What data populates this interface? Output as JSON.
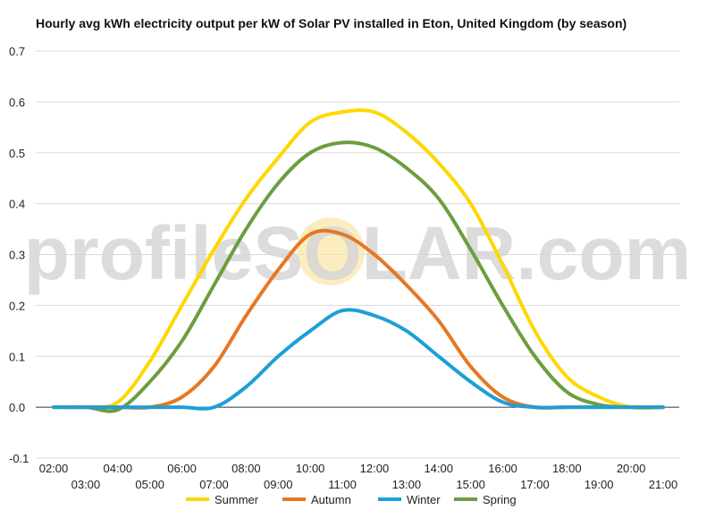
{
  "chart_data": {
    "type": "line",
    "title": "Hourly avg kWh electricity output per kW of Solar PV installed in Eton, United Kingdom (by season)",
    "xlabel": "",
    "ylabel": "",
    "ylim": [
      -0.1,
      0.7
    ],
    "yticks": [
      -0.1,
      0.0,
      0.1,
      0.2,
      0.3,
      0.4,
      0.5,
      0.6,
      0.7
    ],
    "ytick_labels": [
      "-0.1",
      "0.0",
      "0.1",
      "0.2",
      "0.3",
      "0.4",
      "0.5",
      "0.6",
      "0.7"
    ],
    "x": [
      2,
      3,
      4,
      5,
      6,
      7,
      8,
      9,
      10,
      11,
      12,
      13,
      14,
      15,
      16,
      17,
      18,
      19,
      20,
      21
    ],
    "x_tick_labels_upper": [
      "02:00",
      "04:00",
      "06:00",
      "08:00",
      "10:00",
      "12:00",
      "14:00",
      "16:00",
      "18:00",
      "20:00"
    ],
    "x_tick_labels_lower": [
      "03:00",
      "05:00",
      "07:00",
      "09:00",
      "11:00",
      "13:00",
      "15:00",
      "17:00",
      "19:00",
      "21:00"
    ],
    "grid": true,
    "legend_position": "bottom",
    "watermark": "profileSOLAR.com",
    "series": [
      {
        "name": "Summer",
        "color": "#FFD700",
        "values": [
          0,
          0,
          0.01,
          0.09,
          0.2,
          0.31,
          0.41,
          0.49,
          0.56,
          0.58,
          0.58,
          0.54,
          0.48,
          0.4,
          0.28,
          0.15,
          0.06,
          0.02,
          0.0,
          0.0
        ]
      },
      {
        "name": "Autumn",
        "color": "#E87722",
        "values": [
          0,
          0,
          0,
          0,
          0.02,
          0.08,
          0.18,
          0.27,
          0.34,
          0.34,
          0.3,
          0.24,
          0.17,
          0.08,
          0.02,
          0,
          0,
          0,
          0,
          0
        ]
      },
      {
        "name": "Winter",
        "color": "#1E9FD6",
        "values": [
          0,
          0,
          0,
          0,
          0,
          0,
          0.04,
          0.1,
          0.15,
          0.19,
          0.18,
          0.15,
          0.1,
          0.05,
          0.01,
          0,
          0,
          0,
          0,
          0
        ]
      },
      {
        "name": "Spring",
        "color": "#6B9E3F",
        "values": [
          0,
          0,
          -0.005,
          0.05,
          0.13,
          0.24,
          0.35,
          0.44,
          0.5,
          0.52,
          0.51,
          0.47,
          0.41,
          0.31,
          0.2,
          0.1,
          0.03,
          0.005,
          0.0,
          0.0
        ]
      }
    ]
  }
}
